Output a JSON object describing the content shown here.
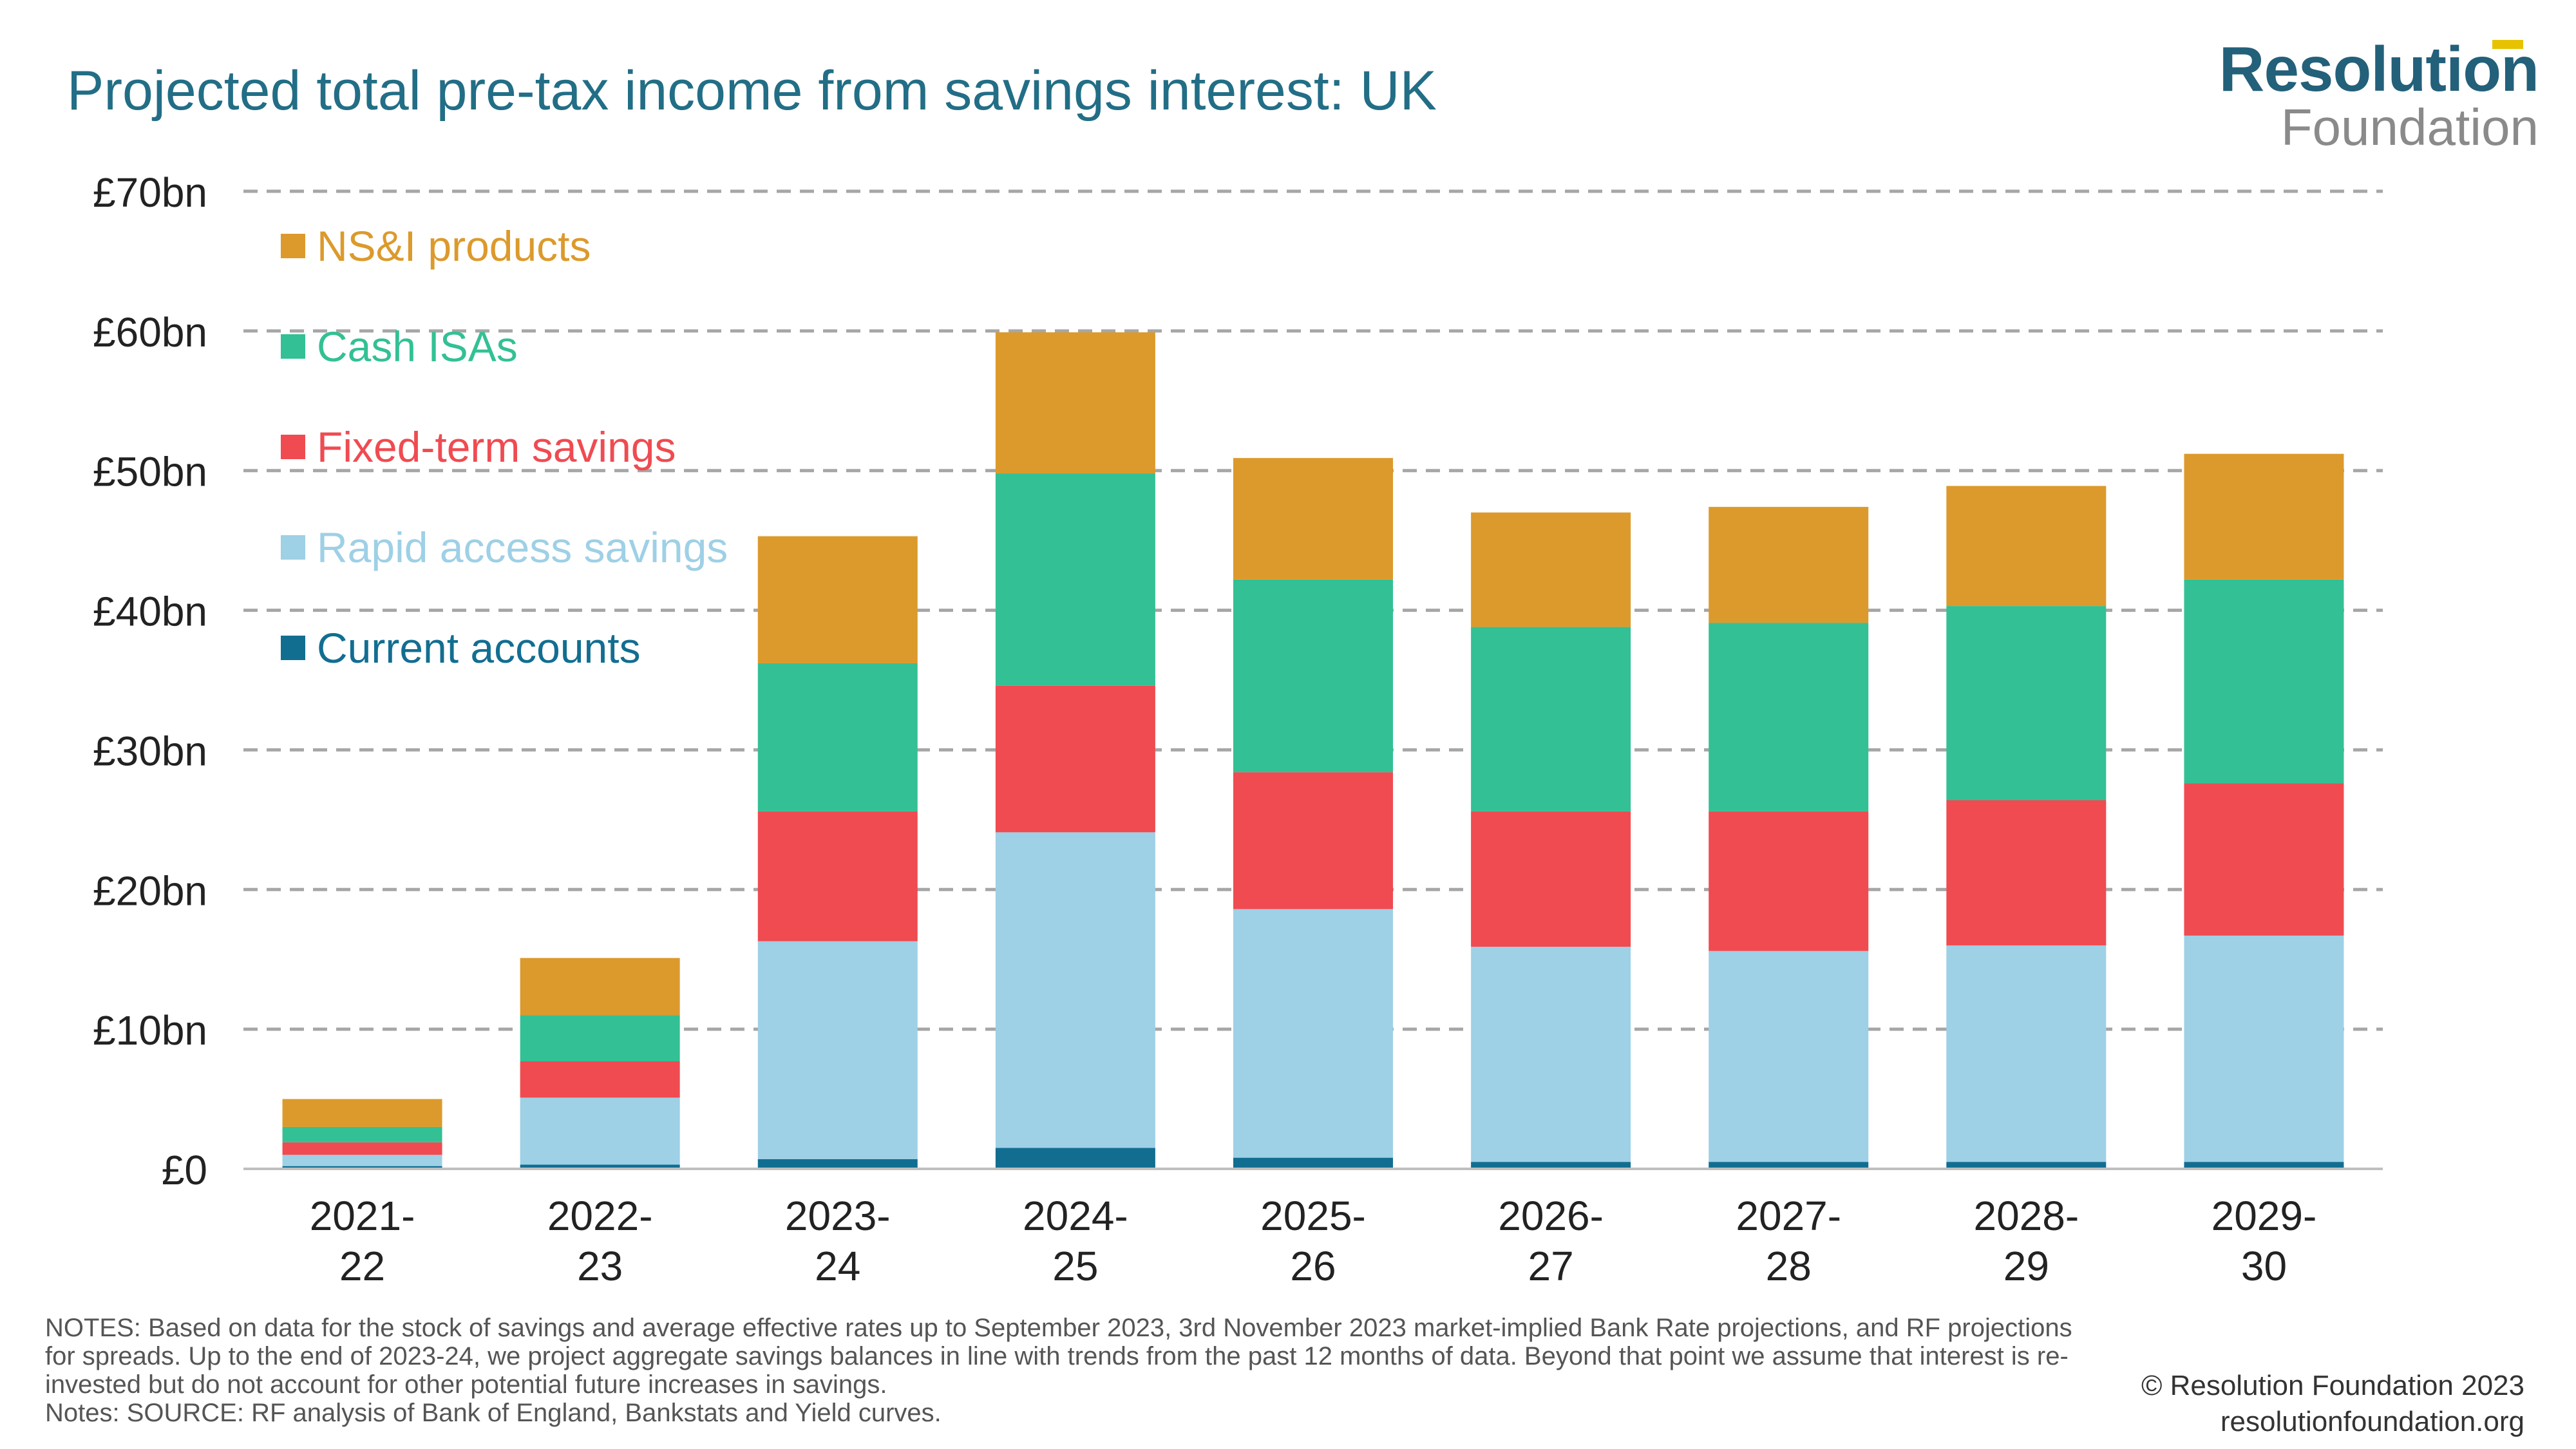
{
  "title": "Projected total pre-tax income from savings interest: UK",
  "logo": {
    "line1": "Resolution",
    "line2": "Foundation"
  },
  "chart_data": {
    "type": "bar",
    "stacked": true,
    "title": "Projected total pre-tax income from savings interest: UK",
    "xlabel": "",
    "ylabel": "",
    "ylim": [
      0,
      70
    ],
    "yticks": [
      0,
      10,
      20,
      30,
      40,
      50,
      60,
      70
    ],
    "ytick_labels": [
      "£0",
      "£10bn",
      "£20bn",
      "£30bn",
      "£40bn",
      "£50bn",
      "£60bn",
      "£70bn"
    ],
    "grid": true,
    "legend_position": "top-left",
    "categories": [
      [
        "2021-",
        "22"
      ],
      [
        "2022-",
        "23"
      ],
      [
        "2023-",
        "24"
      ],
      [
        "2024-",
        "25"
      ],
      [
        "2025-",
        "26"
      ],
      [
        "2026-",
        "27"
      ],
      [
        "2027-",
        "28"
      ],
      [
        "2028-",
        "29"
      ],
      [
        "2029-",
        "30"
      ]
    ],
    "series": [
      {
        "name": "Current accounts",
        "color": "#126e91",
        "values": [
          0.2,
          0.3,
          0.7,
          1.5,
          0.8,
          0.5,
          0.5,
          0.5,
          0.5
        ]
      },
      {
        "name": "Rapid access savings",
        "color": "#9ed0e6",
        "values": [
          0.8,
          4.8,
          15.6,
          22.6,
          17.8,
          15.4,
          15.1,
          15.5,
          16.2
        ]
      },
      {
        "name": "Fixed-term savings",
        "color": "#ef4b51",
        "values": [
          0.9,
          2.6,
          9.3,
          10.5,
          9.8,
          9.7,
          10.0,
          10.4,
          10.9
        ]
      },
      {
        "name": "Cash ISAs",
        "color": "#33c094",
        "values": [
          1.1,
          3.3,
          10.6,
          15.2,
          13.8,
          13.2,
          13.5,
          13.9,
          14.6
        ]
      },
      {
        "name": "NS&I products",
        "color": "#dc9a2c",
        "values": [
          2.0,
          4.1,
          9.1,
          10.1,
          8.7,
          8.2,
          8.3,
          8.6,
          9.0
        ]
      }
    ]
  },
  "notes": "NOTES: Based on data for the stock of savings and average effective rates up to September 2023, 3rd November 2023 market-implied Bank Rate projections, and RF projections for spreads. Up to the end of 2023-24, we project aggregate savings balances in line with trends from the past 12 months of data. Beyond that point we assume that interest is re-invested but do not account for other potential future increases in savings.\nNotes: SOURCE: RF analysis of Bank of England, Bankstats and Yield curves.",
  "credit": {
    "copyright": "© Resolution Foundation 2023",
    "url": "resolutionfoundation.org"
  }
}
